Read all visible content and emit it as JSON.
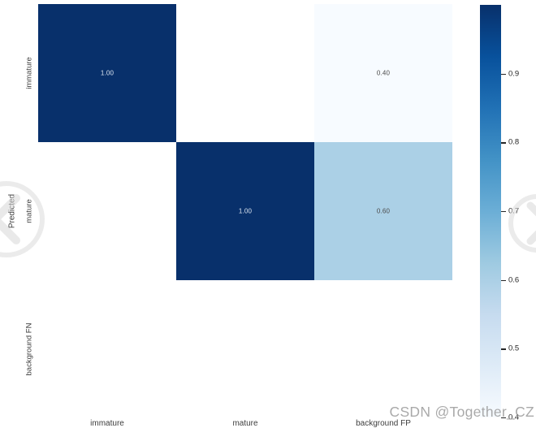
{
  "watermark": {
    "text": "CSDN @Together_CZ",
    "prev_icon": "chevron-left-circle",
    "next_icon": "chevron-right-circle"
  },
  "colors": {
    "cell_max_blue": "#08306b",
    "cell_mid_blue": "#aed0e6",
    "cell_min_blue": "#f6fafe",
    "annotation_on_dark": "#dde6f1",
    "annotation_on_light": "#4a4a4a",
    "tick_text": "#3d3d3d",
    "colorbar_tick_text": "#262626",
    "watermark_gray": "#9b9b9b",
    "background": "#ffffff"
  },
  "chart_data": {
    "type": "heatmap",
    "title": "",
    "xlabel": "",
    "ylabel": "Predicted",
    "x_tick_labels": [
      "immature",
      "mature",
      "background FP"
    ],
    "y_tick_labels": [
      "immature",
      "mature",
      "background FN"
    ],
    "values": [
      [
        1.0,
        null,
        0.4
      ],
      [
        null,
        1.0,
        0.6
      ],
      [
        null,
        null,
        null
      ]
    ],
    "cell_labels": [
      [
        "1.00",
        "",
        "0.40"
      ],
      [
        "",
        "1.00",
        "0.60"
      ],
      [
        "",
        "",
        ""
      ]
    ],
    "vmin": 0.4,
    "vmax": 1.0,
    "colormap": "Blues",
    "colormap_stops": [
      "#f7fbff",
      "#deebf7",
      "#c6dbef",
      "#9ecae1",
      "#6baed6",
      "#4292c6",
      "#2171b5",
      "#08519c",
      "#08306b"
    ],
    "grid": false,
    "legend": false,
    "colorbar": {
      "position": "right",
      "tick_labels": [
        "0.9",
        "0.8",
        "0.7",
        "0.6",
        "0.5",
        "0.4"
      ],
      "tick_values": [
        0.9,
        0.8,
        0.7,
        0.6,
        0.5,
        0.4
      ]
    }
  }
}
